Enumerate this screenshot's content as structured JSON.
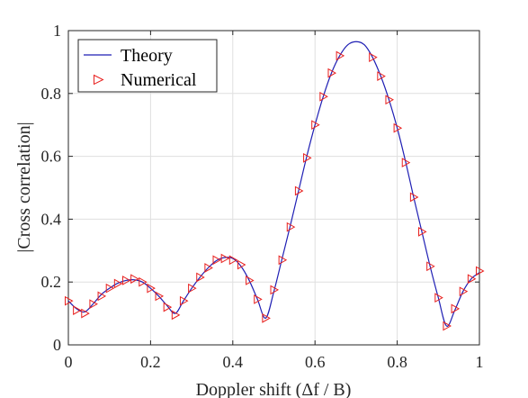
{
  "chart_data": {
    "type": "line",
    "xlabel": "Doppler shift (Δf / B)",
    "ylabel": "|Cross correlation|",
    "xlim": [
      0,
      1
    ],
    "ylim": [
      0,
      1
    ],
    "x_ticks": [
      "0",
      "0.2",
      "0.4",
      "0.6",
      "0.8",
      "1"
    ],
    "y_ticks": [
      "0",
      "0.2",
      "0.4",
      "0.6",
      "0.8",
      "1"
    ],
    "grid": true,
    "legend_position": "top-left",
    "series": [
      {
        "name": "Theory",
        "style": "line",
        "color": "#1f1fb4",
        "x": [
          0,
          0.02,
          0.04,
          0.06,
          0.08,
          0.1,
          0.12,
          0.14,
          0.16,
          0.18,
          0.2,
          0.22,
          0.24,
          0.26,
          0.28,
          0.3,
          0.32,
          0.34,
          0.36,
          0.38,
          0.4,
          0.42,
          0.44,
          0.46,
          0.48,
          0.5,
          0.52,
          0.54,
          0.56,
          0.58,
          0.6,
          0.62,
          0.64,
          0.66,
          0.68,
          0.7,
          0.72,
          0.74,
          0.76,
          0.78,
          0.8,
          0.82,
          0.84,
          0.86,
          0.88,
          0.9,
          0.92,
          0.94,
          0.96,
          0.98,
          1.0
        ],
        "y": [
          0.14,
          0.115,
          0.105,
          0.13,
          0.16,
          0.18,
          0.196,
          0.205,
          0.207,
          0.2,
          0.18,
          0.155,
          0.125,
          0.1,
          0.14,
          0.18,
          0.215,
          0.245,
          0.268,
          0.278,
          0.275,
          0.25,
          0.205,
          0.145,
          0.085,
          0.17,
          0.275,
          0.38,
          0.49,
          0.6,
          0.7,
          0.79,
          0.865,
          0.92,
          0.955,
          0.965,
          0.955,
          0.915,
          0.855,
          0.78,
          0.69,
          0.585,
          0.47,
          0.36,
          0.25,
          0.15,
          0.06,
          0.11,
          0.17,
          0.21,
          0.23
        ]
      },
      {
        "name": "Numerical",
        "style": "markers",
        "color": "#e8201e",
        "x": [
          0,
          0.02,
          0.04,
          0.06,
          0.08,
          0.1,
          0.12,
          0.14,
          0.16,
          0.18,
          0.2,
          0.22,
          0.24,
          0.26,
          0.28,
          0.3,
          0.32,
          0.34,
          0.36,
          0.38,
          0.4,
          0.42,
          0.44,
          0.46,
          0.48,
          0.5,
          0.52,
          0.54,
          0.56,
          0.58,
          0.6,
          0.62,
          0.64,
          0.66,
          0.74,
          0.76,
          0.78,
          0.8,
          0.82,
          0.84,
          0.86,
          0.88,
          0.9,
          0.92,
          0.94,
          0.96,
          0.98,
          1.0
        ],
        "y": [
          0.14,
          0.11,
          0.1,
          0.13,
          0.155,
          0.18,
          0.195,
          0.205,
          0.21,
          0.2,
          0.18,
          0.155,
          0.12,
          0.095,
          0.14,
          0.18,
          0.215,
          0.245,
          0.27,
          0.275,
          0.27,
          0.255,
          0.205,
          0.145,
          0.085,
          0.175,
          0.27,
          0.375,
          0.49,
          0.595,
          0.7,
          0.79,
          0.865,
          0.92,
          0.915,
          0.855,
          0.78,
          0.69,
          0.58,
          0.47,
          0.36,
          0.25,
          0.15,
          0.06,
          0.115,
          0.17,
          0.21,
          0.235
        ]
      }
    ]
  }
}
